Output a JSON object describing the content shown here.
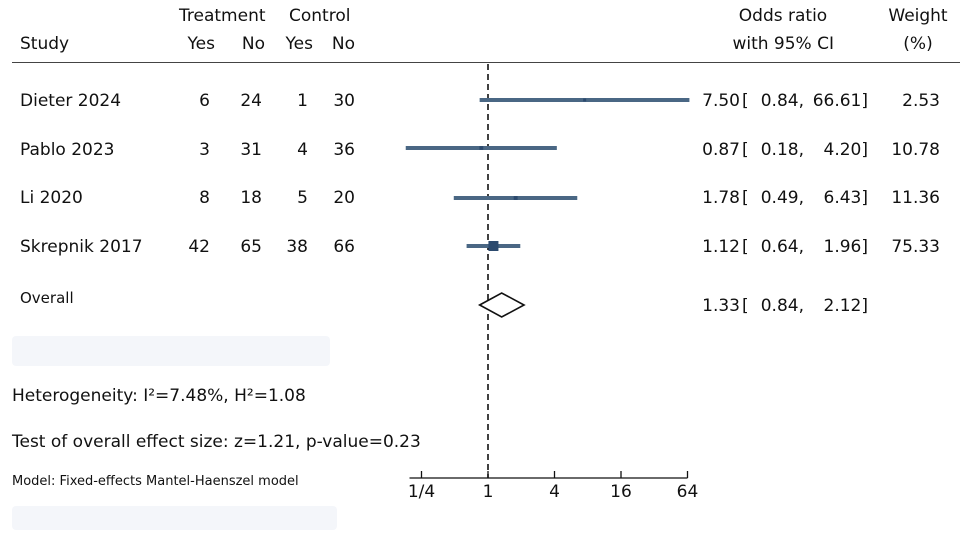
{
  "chart_data": {
    "type": "forest",
    "header": {
      "study": "Study",
      "treatment": "Treatment",
      "control": "Control",
      "yes": "Yes",
      "no": "No",
      "or_line1": "Odds ratio",
      "or_line2": "with 95% CI",
      "weight_line1": "Weight",
      "weight_line2": "(%)"
    },
    "studies": [
      {
        "name": "Dieter 2024",
        "t_yes": "6",
        "t_no": "24",
        "c_yes": "1",
        "c_no": "30",
        "or": 7.5,
        "lo": 0.84,
        "hi": 66.61,
        "weight": 2.53,
        "or_text": "7.50",
        "lo_text": "0.84,",
        "hi_text": "66.61]",
        "weight_text": "2.53"
      },
      {
        "name": "Pablo 2023",
        "t_yes": "3",
        "t_no": "31",
        "c_yes": "4",
        "c_no": "36",
        "or": 0.87,
        "lo": 0.18,
        "hi": 4.2,
        "weight": 10.78,
        "or_text": "0.87",
        "lo_text": "0.18,",
        "hi_text": "4.20]",
        "weight_text": "10.78"
      },
      {
        "name": "Li 2020",
        "t_yes": "8",
        "t_no": "18",
        "c_yes": "5",
        "c_no": "20",
        "or": 1.78,
        "lo": 0.49,
        "hi": 6.43,
        "weight": 11.36,
        "or_text": "1.78",
        "lo_text": "0.49,",
        "hi_text": "6.43]",
        "weight_text": "11.36"
      },
      {
        "name": "Skrepnik 2017",
        "t_yes": "42",
        "t_no": "65",
        "c_yes": "38",
        "c_no": "66",
        "or": 1.12,
        "lo": 0.64,
        "hi": 1.96,
        "weight": 75.33,
        "or_text": "1.12",
        "lo_text": "0.64,",
        "hi_text": "1.96]",
        "weight_text": "75.33"
      }
    ],
    "overall": {
      "label": "Overall",
      "or": 1.33,
      "lo": 0.84,
      "hi": 2.12,
      "or_text": "1.33",
      "lo_text": "0.84,",
      "hi_text": "2.12]"
    },
    "heterogeneity": "Heterogeneity: I²=7.48%, H²=1.08",
    "overall_test": "Test of overall effect size: z=1.21, p-value=0.23",
    "model": "Model: Fixed-effects Mantel-Haenszel model",
    "x_axis": {
      "scale": "log",
      "ticks": [
        0.25,
        1,
        4,
        16,
        64
      ],
      "tick_labels": [
        "1/4",
        "1",
        "4",
        "16",
        "64"
      ],
      "xlim": [
        0.18,
        66.61
      ]
    },
    "reference_line": 1,
    "colors": {
      "ci": "#4a6784",
      "marker": "#2c4a6e",
      "text": "#111111"
    }
  }
}
